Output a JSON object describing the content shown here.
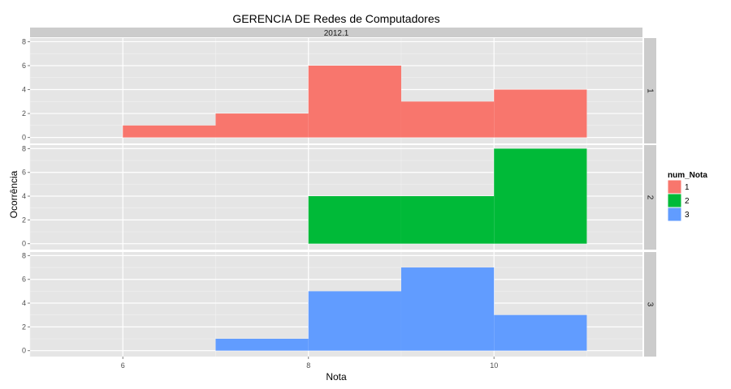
{
  "chart_data": {
    "type": "bar",
    "title": "GERENCIA DE Redes de Computadores",
    "column_facet_label": "2012.1",
    "xlabel": "Nota",
    "ylabel": "Ocorrência",
    "xlim": [
      5,
      11.6
    ],
    "x_ticks": [
      6,
      8,
      10
    ],
    "ylim": [
      -0.5,
      8.3
    ],
    "y_ticks": [
      0,
      2,
      4,
      6,
      8
    ],
    "bin_width": 1,
    "grid": true,
    "legend": {
      "title": "num_Nota",
      "placement": "right",
      "entries": [
        "1",
        "2",
        "3"
      ]
    },
    "series": [
      {
        "name": "1",
        "facet_label": "1",
        "color": "#F8766D",
        "bins": [
          {
            "x_start": 6,
            "x_end": 7,
            "value": 1
          },
          {
            "x_start": 7,
            "x_end": 8,
            "value": 2
          },
          {
            "x_start": 8,
            "x_end": 9,
            "value": 6
          },
          {
            "x_start": 9,
            "x_end": 10,
            "value": 3
          },
          {
            "x_start": 10,
            "x_end": 11,
            "value": 4
          }
        ]
      },
      {
        "name": "2",
        "facet_label": "2",
        "color": "#00BA38",
        "bins": [
          {
            "x_start": 8,
            "x_end": 9,
            "value": 4
          },
          {
            "x_start": 9,
            "x_end": 10,
            "value": 4
          },
          {
            "x_start": 10,
            "x_end": 11,
            "value": 8
          }
        ]
      },
      {
        "name": "3",
        "facet_label": "3",
        "color": "#619CFF",
        "bins": [
          {
            "x_start": 7,
            "x_end": 8,
            "value": 1
          },
          {
            "x_start": 8,
            "x_end": 9,
            "value": 5
          },
          {
            "x_start": 9,
            "x_end": 10,
            "value": 7
          },
          {
            "x_start": 10,
            "x_end": 11,
            "value": 3
          }
        ]
      }
    ]
  }
}
